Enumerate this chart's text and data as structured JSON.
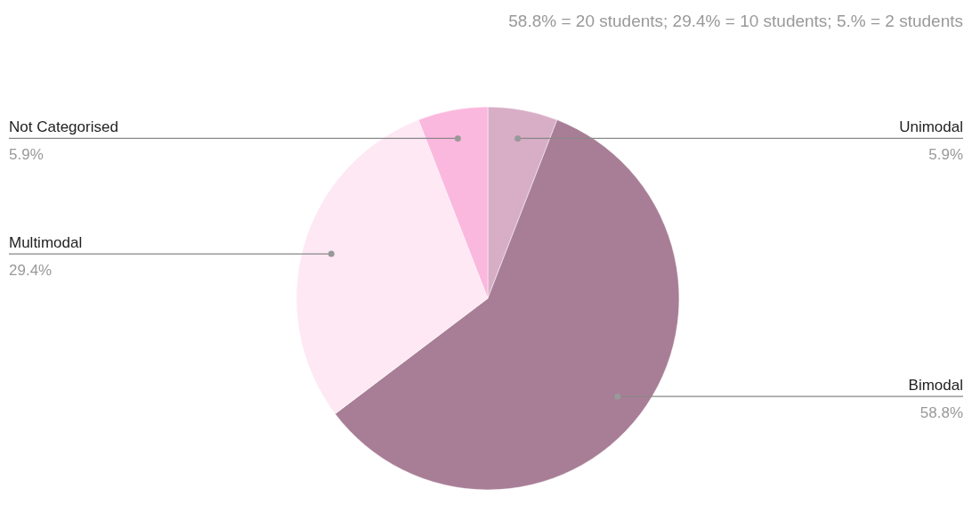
{
  "chart_data": {
    "type": "pie",
    "title": "58.8% = 20 students; 29.4% = 10 students; 5.% = 2 students",
    "categories": [
      "Unimodal",
      "Bimodal",
      "Multimodal",
      "Not Categorised"
    ],
    "values": [
      5.9,
      58.8,
      29.4,
      5.9
    ],
    "colors": [
      "#d8aec6",
      "#a87e96",
      "#fde8f3",
      "#fbb8de"
    ],
    "value_labels": [
      "5.9%",
      "58.8%",
      "29.4%",
      "5.9%"
    ]
  }
}
